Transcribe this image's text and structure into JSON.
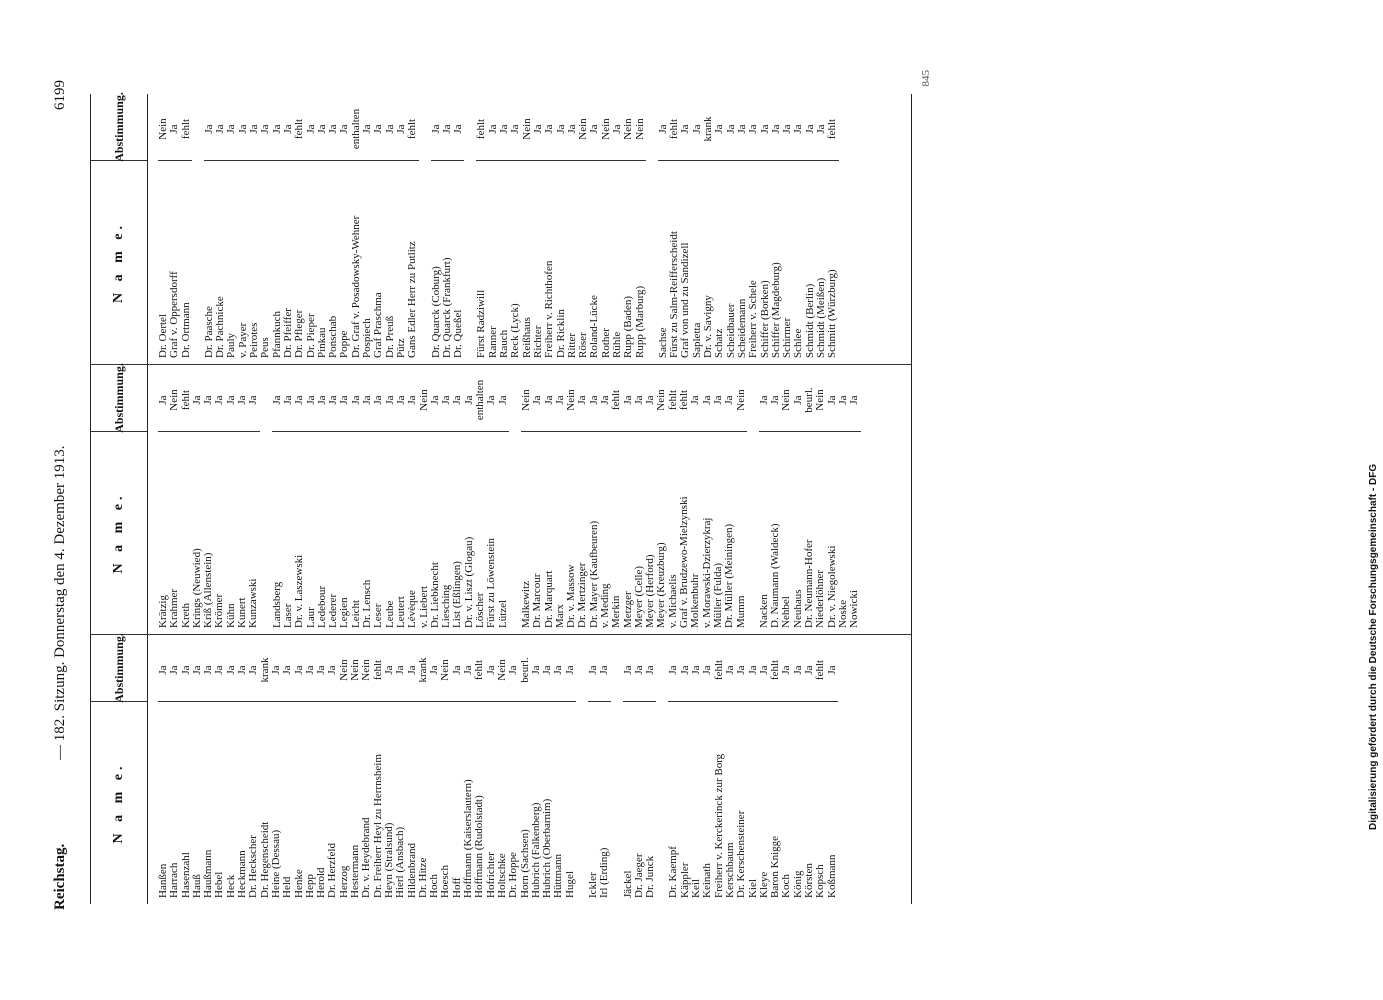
{
  "header": {
    "left": "Reichstag.",
    "center": "— 182. Sitzung. Donnerstag den 4. Dezember 1913.",
    "page": "6199"
  },
  "columns": [
    {
      "name_heading": "N a m e.",
      "vote_heading": "Abstimmung.",
      "blocks": [
        {
          "rows": [
            {
              "name": "Hanßen",
              "vote": "Ja"
            },
            {
              "name": "Harrach",
              "vote": "Ja"
            },
            {
              "name": "Hasenzahl",
              "vote": "Ja"
            },
            {
              "name": "Hauß",
              "vote": "Ja"
            },
            {
              "name": "Haußmann",
              "vote": "Ja"
            },
            {
              "name": "Hebel",
              "vote": "Ja"
            },
            {
              "name": "Heck",
              "vote": "Ja"
            },
            {
              "name": "Heckmann",
              "vote": "Ja"
            },
            {
              "name": "Dr. Heckscher",
              "vote": "Ja"
            },
            {
              "name": "Dr. Hegenscheidt",
              "vote": "krank"
            },
            {
              "name": "Heine (Dessau)",
              "vote": "Ja"
            },
            {
              "name": "Held",
              "vote": "Ja"
            },
            {
              "name": "Henke",
              "vote": "Ja"
            },
            {
              "name": "Hepp",
              "vote": "Ja"
            },
            {
              "name": "Herold",
              "vote": "Ja"
            },
            {
              "name": "Dr. Herzfeld",
              "vote": "Ja"
            },
            {
              "name": "Herzog",
              "vote": "Nein"
            },
            {
              "name": "Hestermann",
              "vote": "Nein"
            },
            {
              "name": "Dr. v. Heydebrand",
              "vote": "Nein"
            },
            {
              "name": "Dr. Freiherr Heyl zu Herrnsheim",
              "vote": "fehlt"
            },
            {
              "name": "Heyn (Stralsund)",
              "vote": "Ja"
            },
            {
              "name": "Hierl (Ansbach)",
              "vote": "Ja"
            },
            {
              "name": "Hildenbrand",
              "vote": "Ja"
            },
            {
              "name": "Dr. Hitze",
              "vote": "krank"
            },
            {
              "name": "Hoch",
              "vote": "Ja"
            },
            {
              "name": "Hoesch",
              "vote": "Nein"
            },
            {
              "name": "Hoff",
              "vote": "Ja"
            },
            {
              "name": "Hoffmann (Kaiserslautern)",
              "vote": "Ja"
            },
            {
              "name": "Hoffmann (Rudolstadt)",
              "vote": "fehlt"
            },
            {
              "name": "Hofrichter",
              "vote": "Ja"
            },
            {
              "name": "Holtschke",
              "vote": "Nein"
            },
            {
              "name": "Dr. Hoppe",
              "vote": "Ja"
            },
            {
              "name": "Horn (Sachsen)",
              "vote": "beurl."
            },
            {
              "name": "Hubrich (Falkenberg)",
              "vote": "Ja"
            },
            {
              "name": "Hubrich (Oberbarnim)",
              "vote": "Ja"
            },
            {
              "name": "Hüttmann",
              "vote": "Ja"
            },
            {
              "name": "Hugel",
              "vote": "Ja"
            }
          ]
        },
        {
          "rows": [
            {
              "name": "Ickler",
              "vote": "Ja"
            },
            {
              "name": "Irl (Erding)",
              "vote": "Ja"
            }
          ]
        },
        {
          "rows": [
            {
              "name": "Jäckel",
              "vote": "Ja"
            },
            {
              "name": "Dr. Jaeger",
              "vote": "Ja"
            },
            {
              "name": "Dr. Junck",
              "vote": "Ja"
            }
          ]
        },
        {
          "rows": [
            {
              "name": "Dr. Kaempf",
              "vote": "Ja"
            },
            {
              "name": "Käppler",
              "vote": "Ja"
            },
            {
              "name": "Keil",
              "vote": "Ja"
            },
            {
              "name": "Keinath",
              "vote": "Ja"
            },
            {
              "name": "Freiherr v. Kerckerinck zur Borg",
              "vote": "fehlt"
            },
            {
              "name": "Kerschbaum",
              "vote": "Ja"
            },
            {
              "name": "Dr. Kerschensteiner",
              "vote": "Ja"
            },
            {
              "name": "Kiel",
              "vote": "Ja"
            },
            {
              "name": "Kleye",
              "vote": "Ja"
            },
            {
              "name": "Baron Knigge",
              "vote": "fehlt"
            },
            {
              "name": "Koch",
              "vote": "Ja"
            },
            {
              "name": "König",
              "vote": "Ja"
            },
            {
              "name": "Körsten",
              "vote": "Ja"
            },
            {
              "name": "Kopsch",
              "vote": "fehlt"
            },
            {
              "name": "Koßmann",
              "vote": "Ja"
            }
          ]
        }
      ]
    },
    {
      "name_heading": "N a m e.",
      "vote_heading": "Abstimmung.",
      "blocks": [
        {
          "rows": [
            {
              "name": "Krätzig",
              "vote": "Ja"
            },
            {
              "name": "Krahmer",
              "vote": "Nein"
            },
            {
              "name": "Kreth",
              "vote": "fehlt"
            },
            {
              "name": "Krings (Neuwied)",
              "vote": "Ja"
            },
            {
              "name": "Kriß (Allenstein)",
              "vote": "Ja"
            },
            {
              "name": "Krömer",
              "vote": "Ja"
            },
            {
              "name": "Kühn",
              "vote": "Ja"
            },
            {
              "name": "Kunert",
              "vote": "Ja"
            },
            {
              "name": "Kunzawski",
              "vote": "Ja"
            }
          ]
        },
        {
          "rows": [
            {
              "name": "Landsberg",
              "vote": "Ja"
            },
            {
              "name": "Laser",
              "vote": "Ja"
            },
            {
              "name": "Dr. v. Laszewski",
              "vote": "Ja"
            },
            {
              "name": "Laur",
              "vote": "Ja"
            },
            {
              "name": "Ledebour",
              "vote": "Ja"
            },
            {
              "name": "Lederer",
              "vote": "Ja"
            },
            {
              "name": "Legien",
              "vote": "Ja"
            },
            {
              "name": "Leicht",
              "vote": "Ja"
            },
            {
              "name": "Dr. Lensch",
              "vote": "Ja"
            },
            {
              "name": "Leser",
              "vote": "Ja"
            },
            {
              "name": "Leube",
              "vote": "Ja"
            },
            {
              "name": "Leutert",
              "vote": "Ja"
            },
            {
              "name": "Lévèque",
              "vote": "Ja"
            },
            {
              "name": "v. Liebert",
              "vote": "Nein"
            },
            {
              "name": "Dr. Liebknecht",
              "vote": "Ja"
            },
            {
              "name": "Liesching",
              "vote": "Ja"
            },
            {
              "name": "List (Eßlingen)",
              "vote": "Ja"
            },
            {
              "name": "Dr. v. Liszt (Glogau)",
              "vote": "Ja"
            },
            {
              "name": "Löscher",
              "vote": "enthalten"
            },
            {
              "name": "Fürst zu Löwenstein",
              "vote": "Ja"
            },
            {
              "name": "Lützel",
              "vote": "Ja"
            }
          ]
        },
        {
          "rows": [
            {
              "name": "Malkewitz",
              "vote": "Nein"
            },
            {
              "name": "Dr. Marcour",
              "vote": "Ja"
            },
            {
              "name": "Dr. Marquart",
              "vote": "Ja"
            },
            {
              "name": "Marx",
              "vote": "Ja"
            },
            {
              "name": "Dr. v. Massow",
              "vote": "Nein"
            },
            {
              "name": "Dr. Mertzinger",
              "vote": "Ja"
            },
            {
              "name": "Dr. Mayer (Kaufbeuren)",
              "vote": "Ja"
            },
            {
              "name": "v. Meding",
              "vote": "Ja"
            },
            {
              "name": "Merkin",
              "vote": "fehlt"
            },
            {
              "name": "Metzger",
              "vote": "Ja"
            },
            {
              "name": "Meyer (Celle)",
              "vote": "Ja"
            },
            {
              "name": "Meyer (Herford)",
              "vote": "Ja"
            },
            {
              "name": "Meyer (Kreuzburg)",
              "vote": "Nein"
            },
            {
              "name": "v. Michaelis",
              "vote": "fehlt"
            },
            {
              "name": "Graf v. Brudzewo-Mielzynski",
              "vote": "fehlt"
            },
            {
              "name": "Molkenbuhr",
              "vote": "Ja"
            },
            {
              "name": "v. Morawski-Dzierzykraj",
              "vote": "Ja"
            },
            {
              "name": "Müller (Fulda)",
              "vote": "Ja"
            },
            {
              "name": "Dr. Müller (Meiningen)",
              "vote": "Ja"
            },
            {
              "name": "Mumm",
              "vote": "Nein"
            }
          ]
        },
        {
          "rows": [
            {
              "name": "Nacken",
              "vote": "Ja"
            },
            {
              "name": "D. Naumann (Waldeck)",
              "vote": "Ja"
            },
            {
              "name": "Nehbel",
              "vote": "Nein"
            },
            {
              "name": "Neuhaus",
              "vote": "Ja"
            },
            {
              "name": "Dr. Neumann-Hofer",
              "vote": "beurl."
            },
            {
              "name": "Niederlöhner",
              "vote": "Nein"
            },
            {
              "name": "Dr. v. Niegolewski",
              "vote": "Ja"
            },
            {
              "name": "Noske",
              "vote": "Ja"
            },
            {
              "name": "Nowicki",
              "vote": "Ja"
            }
          ]
        }
      ]
    },
    {
      "name_heading": "N a m e.",
      "vote_heading": "Abstimmung.",
      "blocks": [
        {
          "rows": [
            {
              "name": "Dr. Oertel",
              "vote": "Nein"
            },
            {
              "name": "Graf v. Oppersdorff",
              "vote": "Ja"
            },
            {
              "name": "Dr. Ortmann",
              "vote": "fehlt"
            }
          ]
        },
        {
          "rows": [
            {
              "name": "Dr. Paasche",
              "vote": "Ja"
            },
            {
              "name": "Dr. Pachnicke",
              "vote": "Ja"
            },
            {
              "name": "Pauly",
              "vote": "Ja"
            },
            {
              "name": "v. Payer",
              "vote": "Ja"
            },
            {
              "name": "Peirotes",
              "vote": "Ja"
            },
            {
              "name": "Peus",
              "vote": "Ja"
            },
            {
              "name": "Pfannkuch",
              "vote": "Ja"
            },
            {
              "name": "Dr. Pfeiffer",
              "vote": "Ja"
            },
            {
              "name": "Dr. Pfleger",
              "vote": "fehlt"
            },
            {
              "name": "Dr. Pieper",
              "vote": "Ja"
            },
            {
              "name": "Pinkau",
              "vote": "Ja"
            },
            {
              "name": "Ponschab",
              "vote": "Ja"
            },
            {
              "name": "Poppe",
              "vote": "Ja"
            },
            {
              "name": "Dr. Graf v. Posadowsky-Wehner",
              "vote": "enthalten"
            },
            {
              "name": "Pospiech",
              "vote": "Ja"
            },
            {
              "name": "Graf Praschma",
              "vote": "Ja"
            },
            {
              "name": "Dr. Preuß",
              "vote": "Ja"
            },
            {
              "name": "Pütz",
              "vote": "Ja"
            },
            {
              "name": "Gans Edler Herr zu Putlitz",
              "vote": "fehlt"
            }
          ]
        },
        {
          "rows": [
            {
              "name": "Dr. Quarck (Coburg)",
              "vote": "Ja"
            },
            {
              "name": "Dr. Quarck (Frankfurt)",
              "vote": "Ja"
            },
            {
              "name": "Dr. Queßel",
              "vote": "Ja"
            }
          ]
        },
        {
          "rows": [
            {
              "name": "Fürst Radziwill",
              "vote": "fehlt"
            },
            {
              "name": "Ranner",
              "vote": "Ja"
            },
            {
              "name": "Rauch",
              "vote": "Ja"
            },
            {
              "name": "Reck (Lyck)",
              "vote": "Ja"
            },
            {
              "name": "Reißhaus",
              "vote": "Nein"
            },
            {
              "name": "Richter",
              "vote": "Ja"
            },
            {
              "name": "Freiherr v. Richthofen",
              "vote": "Ja"
            },
            {
              "name": "Dr. Ricklin",
              "vote": "Ja"
            },
            {
              "name": "Ritter",
              "vote": "Ja"
            },
            {
              "name": "Röser",
              "vote": "Nein"
            },
            {
              "name": "Roland-Lücke",
              "vote": "Ja"
            },
            {
              "name": "Rother",
              "vote": "Nein"
            },
            {
              "name": "Rühle",
              "vote": "Ja"
            },
            {
              "name": "Rupp (Baden)",
              "vote": "Nein"
            },
            {
              "name": "Rupp (Marburg)",
              "vote": "Nein"
            }
          ]
        },
        {
          "rows": [
            {
              "name": "Sachse",
              "vote": "Ja"
            },
            {
              "name": "Fürst zu Salm-Reifferscheidt",
              "vote": "fehlt"
            },
            {
              "name": "Graf von und zu Sandizell",
              "vote": "Ja"
            },
            {
              "name": "Sapletta",
              "vote": "Ja"
            },
            {
              "name": "Dr. v. Savigny",
              "vote": "krank"
            },
            {
              "name": "Schatz",
              "vote": "Ja"
            },
            {
              "name": "Scheidbauer",
              "vote": "Ja"
            },
            {
              "name": "Scheidemann",
              "vote": "Ja"
            },
            {
              "name": "Freiherr v. Schele",
              "vote": "Ja"
            },
            {
              "name": "Schiffer (Borken)",
              "vote": "Ja"
            },
            {
              "name": "Schiffer (Magdeburg)",
              "vote": "Ja"
            },
            {
              "name": "Schirmer",
              "vote": "Ja"
            },
            {
              "name": "Schlee",
              "vote": "Ja"
            },
            {
              "name": "Schmidt (Berlin)",
              "vote": "Ja"
            },
            {
              "name": "Schmidt (Meißen)",
              "vote": "Ja"
            },
            {
              "name": "Schmitt (Würzburg)",
              "vote": "fehlt"
            }
          ]
        }
      ]
    }
  ],
  "footer": {
    "sheet_number": "845"
  },
  "sidebar": {
    "credit": "Digitalisierung gefördert durch die Deutsche Forschungsgemeinschaft - DFG"
  }
}
